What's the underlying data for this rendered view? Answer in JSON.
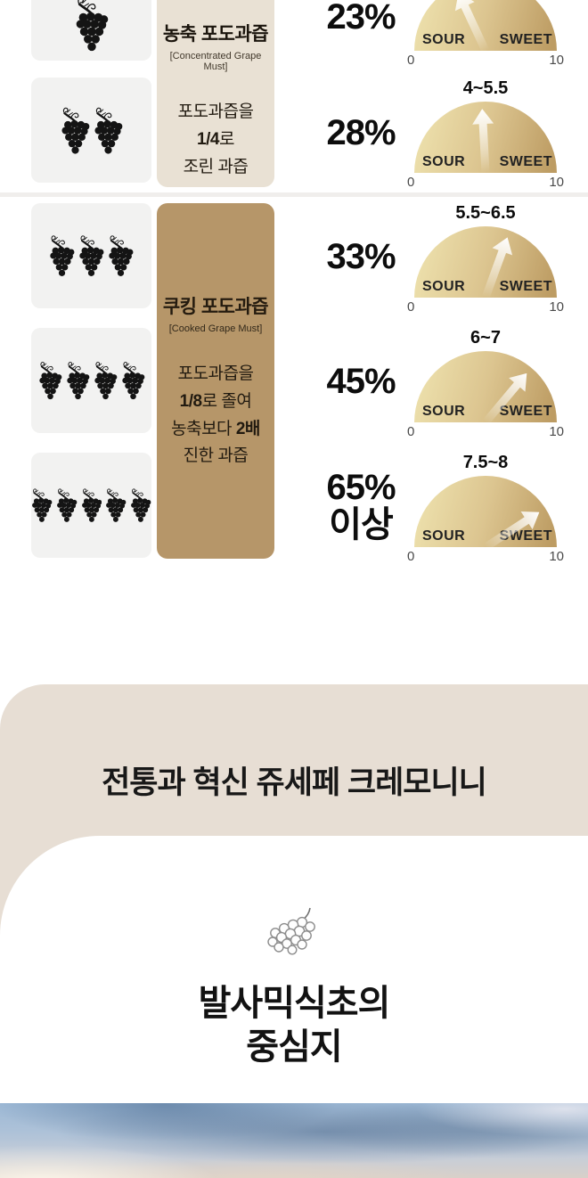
{
  "table": {
    "groups": [
      {
        "title": "농축 포도과즙",
        "subtitle": "[Concentrated Grape Must]",
        "desc": [
          [
            {
              "t": "포도과즙을"
            }
          ],
          [
            {
              "t": "1/4",
              "b": true
            },
            {
              "t": "로"
            }
          ],
          [
            {
              "t": "조린 과즙"
            }
          ]
        ]
      },
      {
        "title": "쿠킹 포도과즙",
        "subtitle": "[Cooked Grape Must]",
        "desc": [
          [
            {
              "t": "포도과즙을"
            }
          ],
          [
            {
              "t": "1/8",
              "b": true
            },
            {
              "t": "로 졸여"
            }
          ],
          [
            {
              "t": "농축보다 "
            },
            {
              "t": "2배",
              "b": true
            }
          ],
          [
            {
              "t": "진한 과즙"
            }
          ]
        ]
      }
    ],
    "rows": [
      {
        "grapes": 1,
        "percent": "23%",
        "range": "",
        "sweetness_deg": -25
      },
      {
        "grapes": 2,
        "percent": "28%",
        "range": "4~5.5",
        "sweetness_deg": -3
      },
      {
        "grapes": 3,
        "percent": "33%",
        "range": "5.5~6.5",
        "sweetness_deg": 20
      },
      {
        "grapes": 4,
        "percent": "45%",
        "range": "6~7",
        "sweetness_deg": 40
      },
      {
        "grapes": 5,
        "percent": "65%",
        "percent_suffix": "이상",
        "range": "7.5~8",
        "sweetness_deg": 57
      }
    ],
    "gauge": {
      "left": "SOUR",
      "right": "SWEET",
      "min": "0",
      "max": "10"
    }
  },
  "heritage": {
    "title": "전통과 혁신 쥬세페 크레모니니",
    "subtitle_line1": "발사믹식초의",
    "subtitle_line2": "중심지"
  },
  "chart_data": {
    "type": "table",
    "title": "포도과즙 농축 단계별 당도 비교",
    "columns": [
      "grape_bunches",
      "group",
      "concentration_percent",
      "sweetness_range_0_to_10"
    ],
    "rows": [
      {
        "grape_bunches": 1,
        "group": "농축 포도과즙",
        "concentration_percent": "23%",
        "sweetness_range": ""
      },
      {
        "grape_bunches": 2,
        "group": "농축 포도과즙",
        "concentration_percent": "28%",
        "sweetness_range": "4~5.5"
      },
      {
        "grape_bunches": 3,
        "group": "쿠킹 포도과즙",
        "concentration_percent": "33%",
        "sweetness_range": "5.5~6.5"
      },
      {
        "grape_bunches": 4,
        "group": "쿠킹 포도과즙",
        "concentration_percent": "45%",
        "sweetness_range": "6~7"
      },
      {
        "grape_bunches": 5,
        "group": "쿠킹 포도과즙",
        "concentration_percent": "65% 이상",
        "sweetness_range": "7.5~8"
      }
    ],
    "gauge_scale": {
      "min": 0,
      "max": 10,
      "left_label": "SOUR",
      "right_label": "SWEET"
    }
  },
  "colors": {
    "left_cell_bg": "#f2f2f1",
    "concentrated_card_bg": "#e9e1d4",
    "cooked_card_bg": "#b69669",
    "gauge_gradient_left": "#eee2ae",
    "gauge_gradient_right": "#bd9c63",
    "heritage_band_bg": "#e7ded4",
    "text_dark": "#111111"
  }
}
